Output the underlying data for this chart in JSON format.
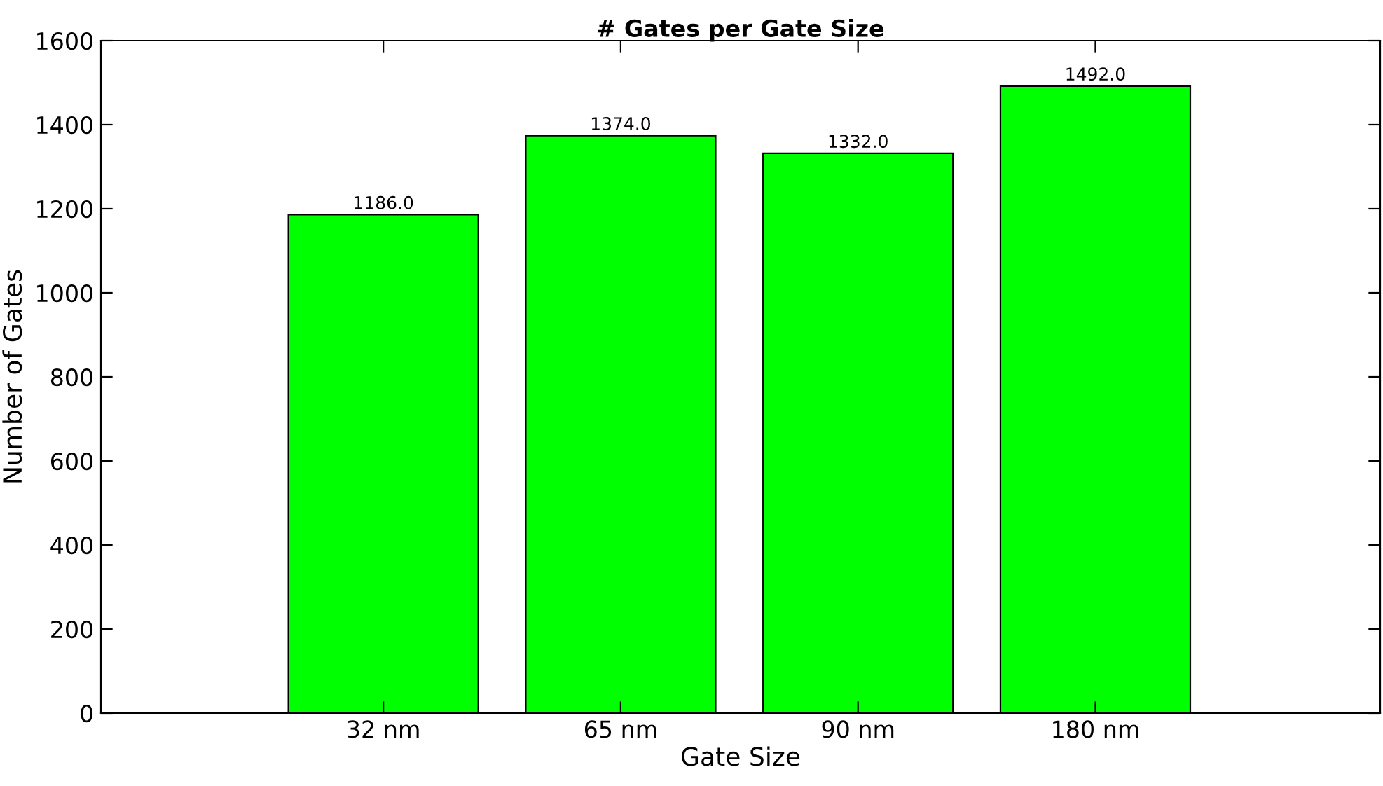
{
  "chart_data": {
    "type": "bar",
    "title": "# Gates per Gate Size",
    "xlabel": "Gate Size",
    "ylabel": "Number of Gates",
    "categories": [
      "32 nm",
      "65 nm",
      "90 nm",
      "180 nm"
    ],
    "values": [
      1186,
      1374,
      1332,
      1492
    ],
    "value_labels": [
      "1186.0",
      "1374.0",
      "1332.0",
      "1492.0"
    ],
    "color": "#00ff00",
    "ylim": [
      0,
      1600
    ],
    "yticks": [
      0,
      200,
      400,
      600,
      800,
      1000,
      1200,
      1400,
      1600
    ],
    "grid": false
  }
}
